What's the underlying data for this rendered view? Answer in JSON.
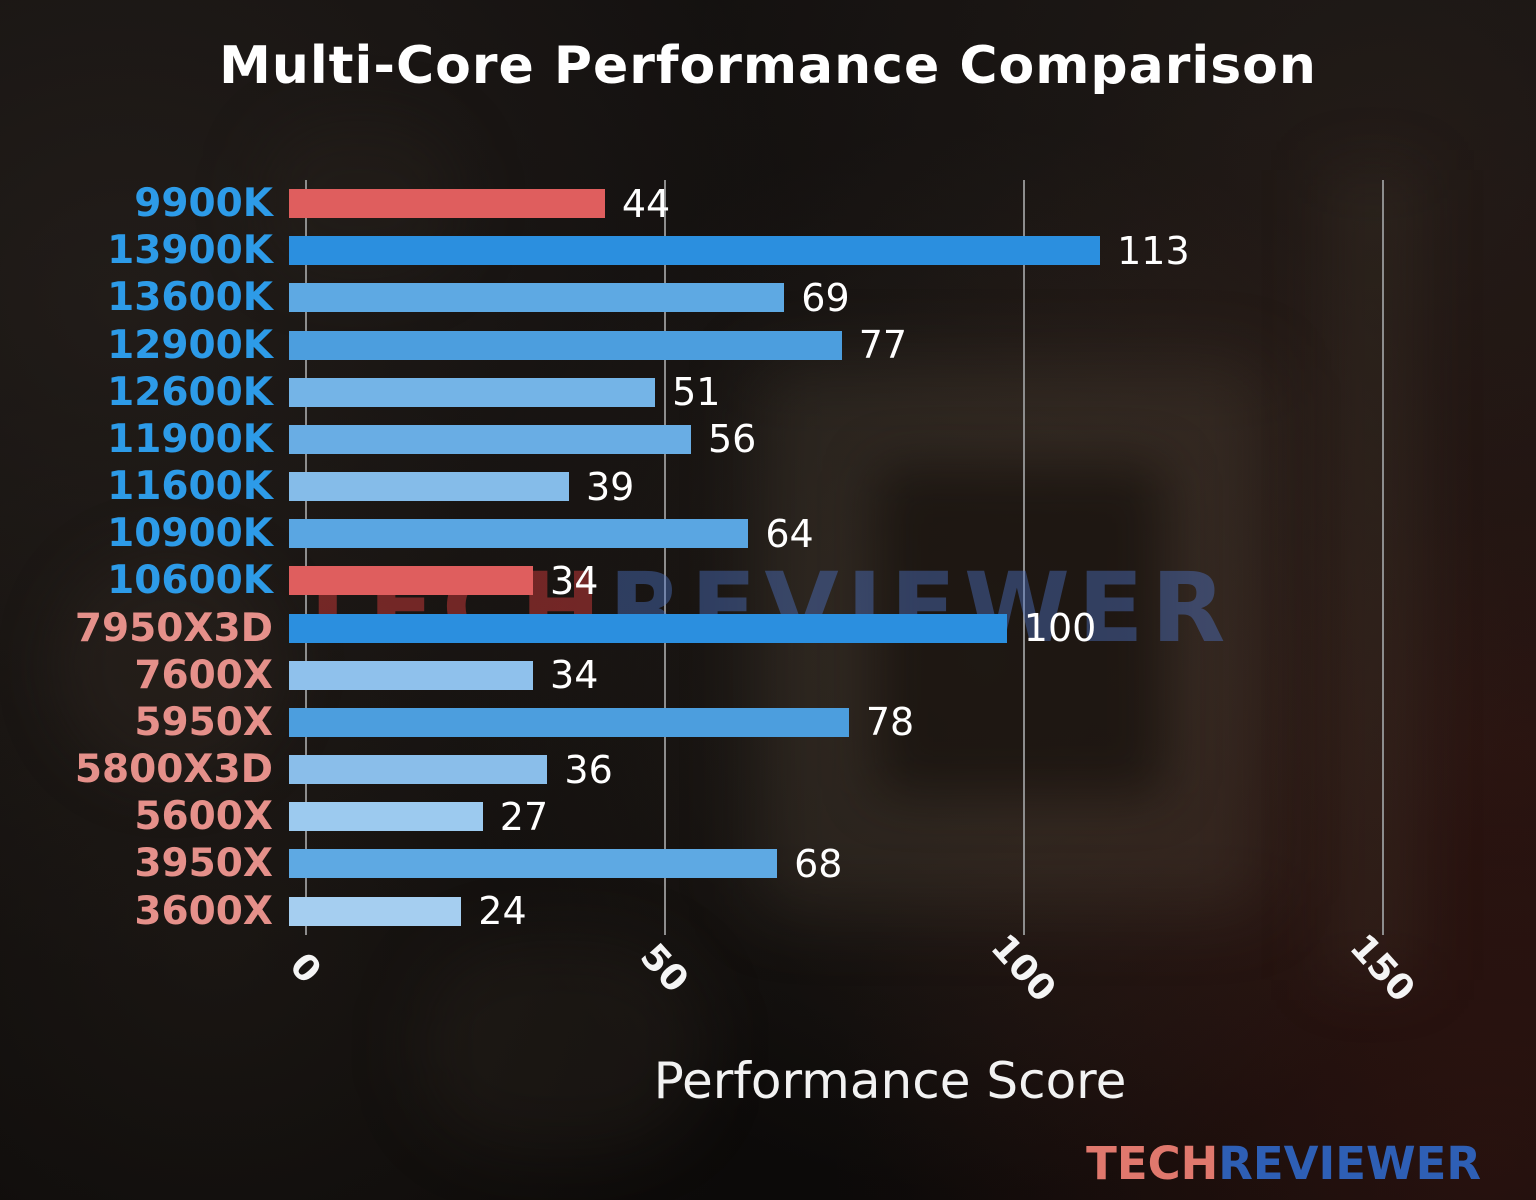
{
  "title": "Multi-Core Performance Comparison",
  "watermark": {
    "part1": "TECH",
    "part2": "REVIEWER"
  },
  "logo": {
    "part1": "TECH",
    "part2": "REVIEWER"
  },
  "colors": {
    "highlight_red": "#df5e5e",
    "strong_blue": "#2b8fdf",
    "intel_label_blue": "#2d9be8",
    "amd_label_salmon": "#e5908a",
    "grid_gray": "#8d8d8d",
    "value_text": "#ffffff"
  },
  "chart_data": {
    "type": "bar",
    "orientation": "horizontal",
    "title": "Multi-Core Performance Comparison",
    "xlabel": "Performance Score",
    "ylabel": "",
    "xlim": [
      0,
      163
    ],
    "xticks": [
      0,
      50,
      100,
      150
    ],
    "grid": true,
    "legend": false,
    "categories": [
      "9900K",
      "13900K",
      "13600K",
      "12900K",
      "12600K",
      "11900K",
      "11600K",
      "10900K",
      "10600K",
      "7950X3D",
      "7600X",
      "5950X",
      "5800X3D",
      "5600X",
      "3950X",
      "3600X"
    ],
    "values": [
      44,
      113,
      69,
      77,
      51,
      56,
      39,
      64,
      34,
      100,
      34,
      78,
      36,
      27,
      68,
      24
    ],
    "bar_colors": [
      "#df5e5e",
      "#2b8fdf",
      "#5ea9e3",
      "#4c9ede",
      "#74b4e7",
      "#69ade4",
      "#85bce9",
      "#5aa6e2",
      "#df5e5e",
      "#2b8fdf",
      "#8fc1ec",
      "#4c9ede",
      "#8abeea",
      "#9ccaef",
      "#5ea9e3",
      "#a5cef0"
    ],
    "label_colors": [
      "#2d9be8",
      "#2d9be8",
      "#2d9be8",
      "#2d9be8",
      "#2d9be8",
      "#2d9be8",
      "#2d9be8",
      "#2d9be8",
      "#2d9be8",
      "#e5908a",
      "#e5908a",
      "#e5908a",
      "#e5908a",
      "#e5908a",
      "#e5908a",
      "#e5908a"
    ]
  }
}
